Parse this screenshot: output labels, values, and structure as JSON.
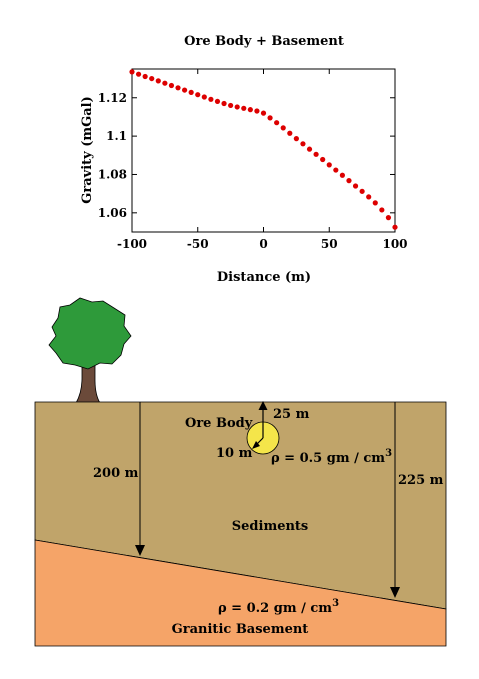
{
  "chart_data": {
    "type": "scatter",
    "title": "Ore Body + Basement",
    "xlabel": "Distance (m)",
    "ylabel": "Gravity (mGal)",
    "xlim": [
      -100,
      100
    ],
    "ylim": [
      1.05,
      1.135
    ],
    "xticks": [
      -100,
      -50,
      0,
      50,
      100
    ],
    "yticks": [
      1.06,
      1.08,
      1.1,
      1.12
    ],
    "ytick_labels": [
      "1.06",
      "1.08",
      "1.1",
      "1.12"
    ],
    "grid": false,
    "series": [
      {
        "color": "#dd0000",
        "x": [
          -100,
          -95,
          -90,
          -85,
          -80,
          -75,
          -70,
          -65,
          -60,
          -55,
          -50,
          -45,
          -40,
          -35,
          -30,
          -25,
          -20,
          -15,
          -10,
          -5,
          0,
          5,
          10,
          15,
          20,
          25,
          30,
          35,
          40,
          45,
          50,
          55,
          60,
          65,
          70,
          75,
          80,
          85,
          90,
          95,
          100
        ],
        "y": [
          1.1335,
          1.1323,
          1.1311,
          1.13,
          1.1288,
          1.1276,
          1.1264,
          1.1252,
          1.124,
          1.1228,
          1.1216,
          1.1204,
          1.1192,
          1.1181,
          1.117,
          1.116,
          1.1152,
          1.1145,
          1.1138,
          1.1131,
          1.112,
          1.1095,
          1.107,
          1.1043,
          1.1015,
          1.0987,
          1.096,
          1.0932,
          1.0905,
          1.0878,
          1.085,
          1.0823,
          1.0796,
          1.0768,
          1.074,
          1.0712,
          1.0683,
          1.0652,
          1.0615,
          1.0575,
          1.0525
        ]
      }
    ]
  },
  "diagram": {
    "labels": {
      "ore_body": "Ore Body",
      "depth_ore": "25 m",
      "radius_ore": "10 m",
      "ore_density_prefix": "ρ = 0.5 gm / cm",
      "ore_density_exp": "3",
      "depth_left": "200 m",
      "depth_right": "225 m",
      "sediments": "Sediments",
      "basement_density_prefix": "ρ = 0.2 gm / cm",
      "basement_density_exp": "3",
      "basement": "Granitic Basement"
    },
    "colors": {
      "sediments": "#c0a46a",
      "basement": "#f5a468",
      "ore_body": "#f4e54a",
      "tree_canopy": "#2e9a3a",
      "tree_trunk": "#6b4a3a",
      "data_points": "#dd0000"
    }
  }
}
